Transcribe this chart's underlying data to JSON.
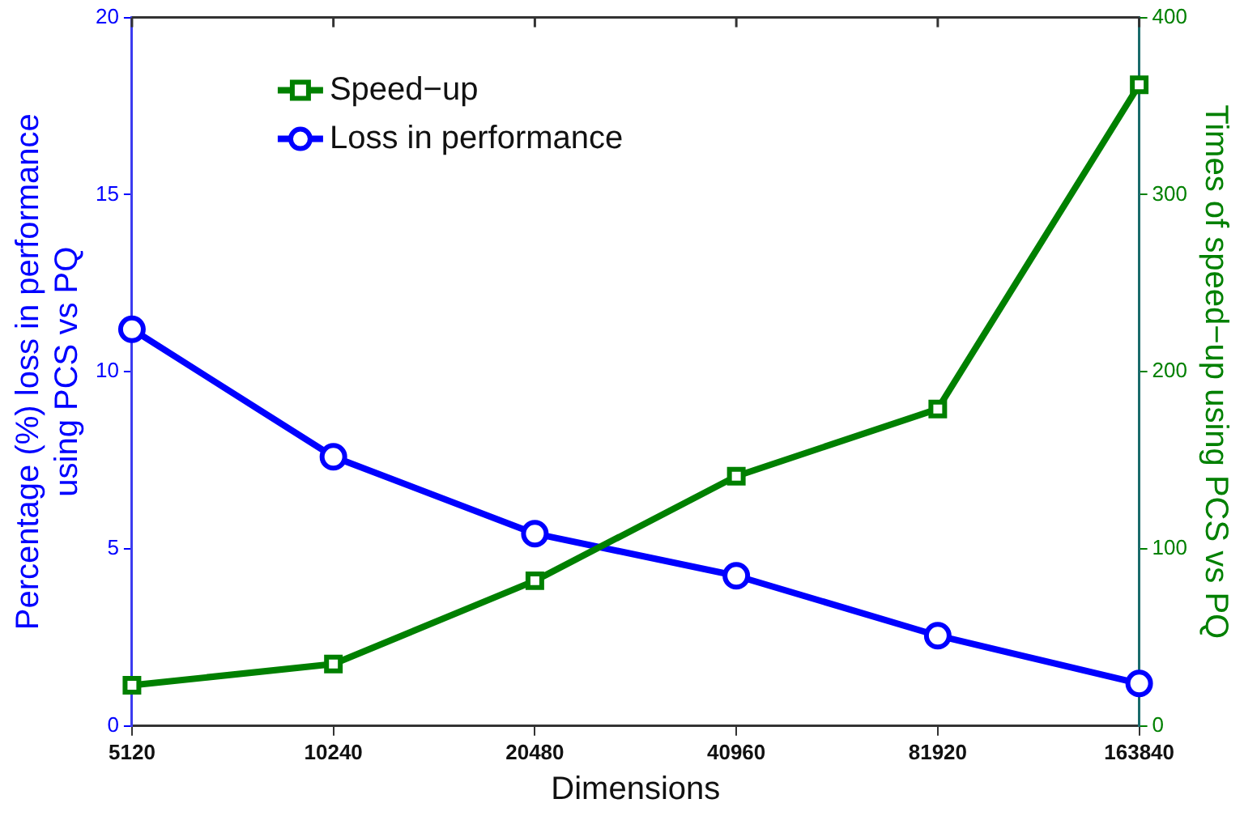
{
  "chart_data": {
    "type": "line",
    "xlabel": "Dimensions",
    "ylabel": "Percentage (%) loss in performance using PCS vs PQ",
    "y2label": "Times of speed−up using PCS vs PQ",
    "categories": [
      "5120",
      "10240",
      "20480",
      "40960",
      "81920",
      "163840"
    ],
    "series": [
      {
        "name": "Speed−up",
        "color": "#008000",
        "axis": "y2",
        "marker": "square",
        "values": [
          23,
          35,
          82,
          141,
          179,
          362
        ]
      },
      {
        "name": "Loss in performance",
        "color": "#0000ff",
        "marker": "circle",
        "values": [
          11.2,
          7.6,
          5.43,
          4.24,
          2.55,
          1.2
        ]
      }
    ],
    "ylim": [
      0,
      20
    ],
    "yticks": [
      0,
      5,
      10,
      15,
      20
    ],
    "y2lim": [
      0,
      400
    ],
    "y2ticks": [
      0,
      100,
      200,
      300,
      400
    ],
    "grid": false,
    "legend": "top left",
    "line_style": "solid"
  }
}
